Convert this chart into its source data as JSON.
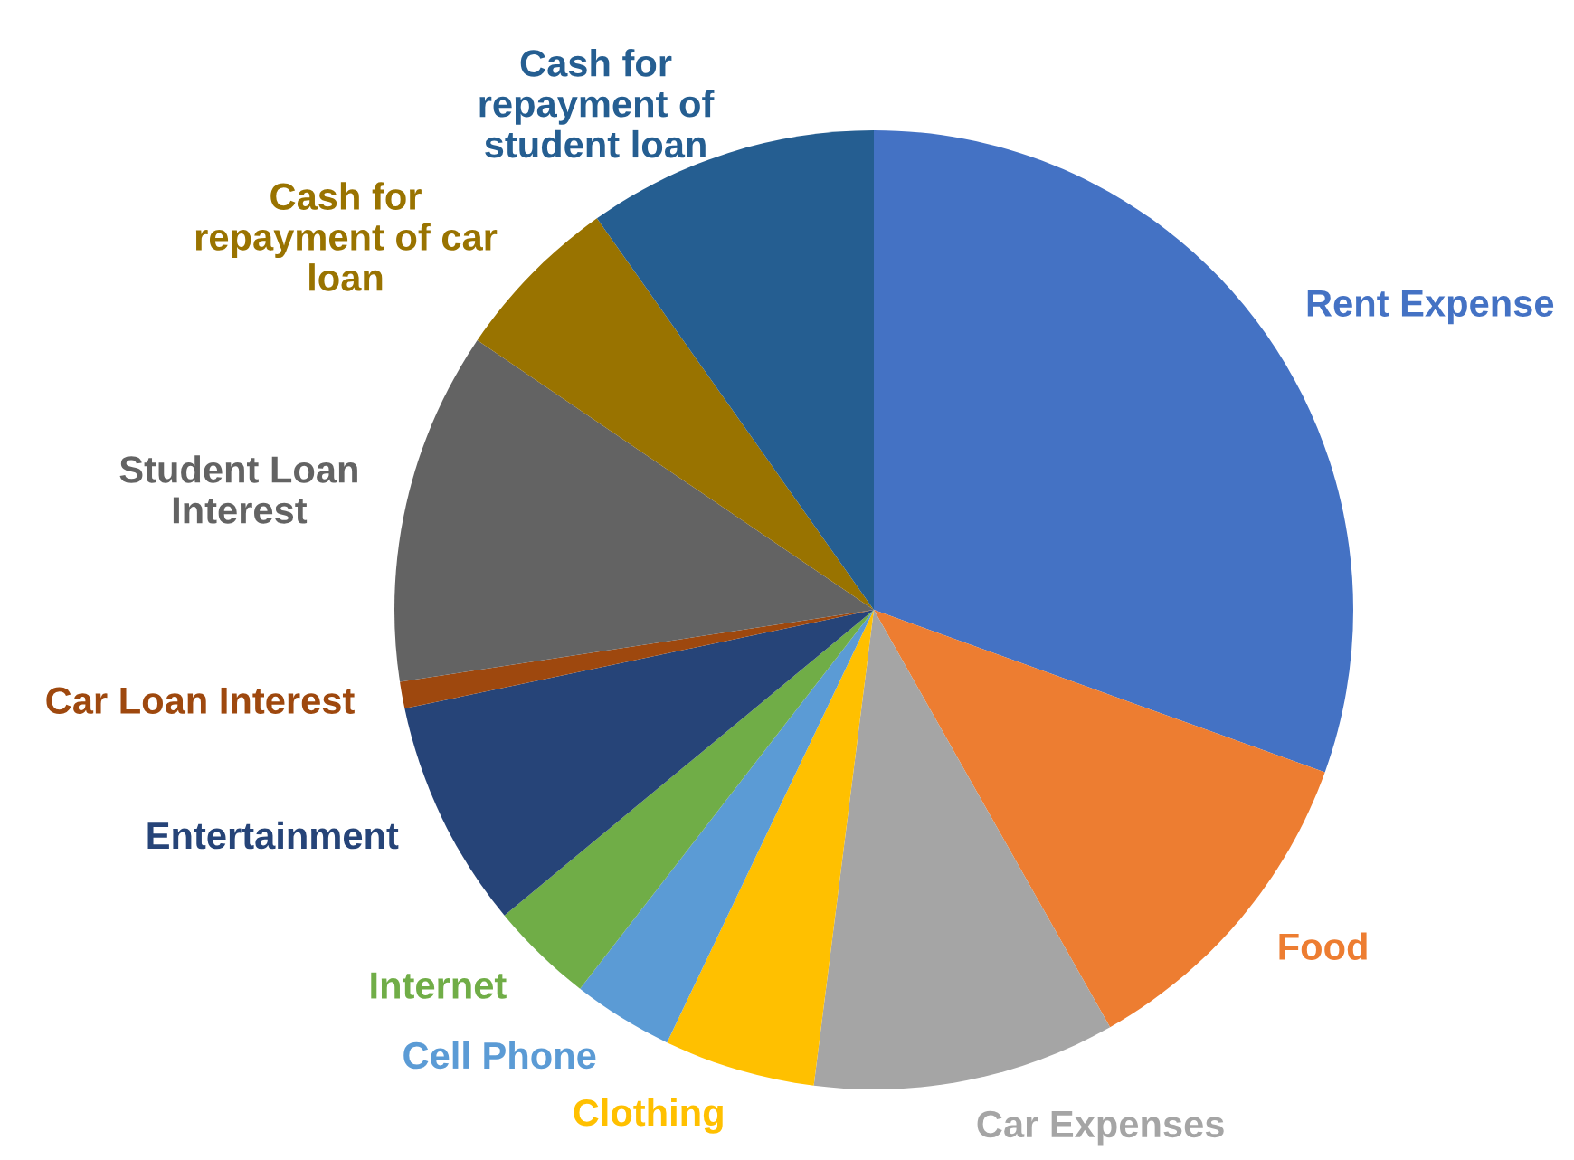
{
  "chart_data": {
    "type": "pie",
    "categories": [
      "Rent Expense",
      "Food",
      "Car Expenses",
      "Clothing",
      "Cell Phone",
      "Internet",
      "Entertainment",
      "Car Loan Interest",
      "Student Loan\nInterest",
      "Cash for\nrepayment of car\nloan",
      "Cash for\nrepayment of\nstudent loan"
    ],
    "values": [
      30.5,
      11.3,
      10.2,
      5.1,
      3.4,
      3.5,
      7.7,
      0.9,
      11.9,
      5.7,
      9.8
    ],
    "colors": [
      "#4472c4",
      "#ed7d31",
      "#a5a5a5",
      "#ffc000",
      "#5b9bd5",
      "#70ad47",
      "#264478",
      "#9e480e",
      "#636363",
      "#997300",
      "#255e91"
    ],
    "legend": false
  }
}
